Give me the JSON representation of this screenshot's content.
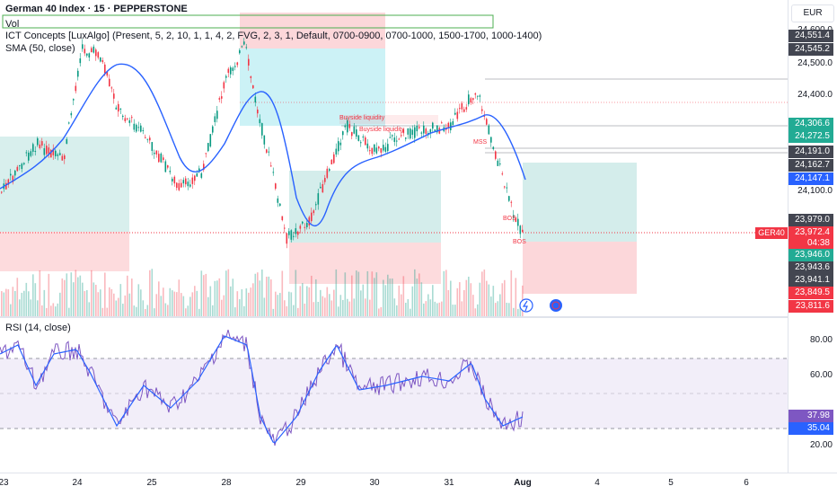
{
  "header": {
    "title": "German 40 Index · 15 · PEPPERSTONE",
    "vol": "Vol",
    "ict": "ICT Concepts [LuxAlgo] (Present, 5, 2, 10, 1, 1, 4, 2, FVG, 2, 3, 1, Default, 0700-0900, 0700-1000, 1500-1700, 1000-1400)",
    "sma": "SMA (50, close)",
    "rsi": "RSI (14, close)"
  },
  "currency_button": "EUR",
  "price_ticks": [
    "24,600.0",
    "24,500.0",
    "24,400.0",
    "24,100.0"
  ],
  "price_tags": [
    {
      "label": "24,551.4",
      "color": "#434651"
    },
    {
      "label": "24,545.2",
      "color": "#434651"
    },
    {
      "label": "24,306.6",
      "color": "#22ab94"
    },
    {
      "label": "24,272.5",
      "color": "#22ab94"
    },
    {
      "label": "24,191.0",
      "color": "#434651"
    },
    {
      "label": "24,162.7",
      "color": "#434651"
    },
    {
      "label": "24,147.1",
      "color": "#2962ff"
    },
    {
      "label": "23,979.0",
      "color": "#434651"
    },
    {
      "label": "23,972.4",
      "color": "#f23645"
    },
    {
      "label": "04:38",
      "color": "#f23645"
    },
    {
      "label": "23,946.0",
      "color": "#22ab94"
    },
    {
      "label": "23,943.6",
      "color": "#434651"
    },
    {
      "label": "23,941.1",
      "color": "#434651"
    },
    {
      "label": "23,849.5",
      "color": "#f23645"
    },
    {
      "label": "23,811.6",
      "color": "#f23645"
    }
  ],
  "symbol_tag": "GER40",
  "rsi_ticks": [
    "80.00",
    "60.00",
    "20.00"
  ],
  "rsi_tags": [
    {
      "label": "37.98",
      "color": "#7e57c2"
    },
    {
      "label": "35.04",
      "color": "#2962ff"
    }
  ],
  "chart_labels": {
    "buyside1": "Buyside liquidity",
    "buyside2": "Buyside liquidity",
    "mss": "MSS",
    "bos": "BOS"
  },
  "time_labels": [
    "23",
    "24",
    "25",
    "28",
    "29",
    "30",
    "31",
    "Aug",
    "4",
    "5",
    "6"
  ],
  "colors": {
    "up": "#089981",
    "down": "#f23645",
    "sma": "#2962ff",
    "rsi": "#7e57c2",
    "rsi_ma": "#2962ff"
  }
}
